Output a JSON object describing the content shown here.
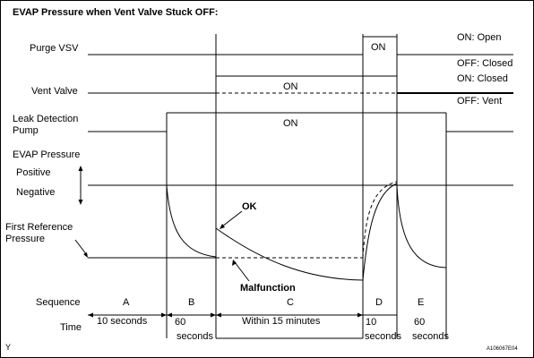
{
  "title": "EVAP Pressure when Vent Valve Stuck OFF:",
  "signals": {
    "purge_vsv": "Purge VSV",
    "vent_valve": "Vent Valve",
    "leak_pump_line1": "Leak Detection",
    "leak_pump_line2": "Pump",
    "evap_pressure": "EVAP Pressure",
    "positive": "Positive",
    "negative": "Negative",
    "first_ref_line1": "First Reference",
    "first_ref_line2": "Pressure"
  },
  "states": {
    "on_open": "ON: Open",
    "off_closed": "OFF: Closed",
    "on_closed": "ON: Closed",
    "off_vent": "OFF: Vent"
  },
  "on_labels": {
    "purge": "ON",
    "vent": "ON",
    "pump": "ON"
  },
  "curve_labels": {
    "ok": "OK",
    "malfunction": "Malfunction"
  },
  "sequence": {
    "label": "Sequence",
    "steps": [
      "A",
      "B",
      "C",
      "D",
      "E"
    ]
  },
  "time": {
    "label": "Time",
    "a": "10 seconds",
    "b_line1": "60",
    "b_line2": "seconds",
    "c": "Within 15 minutes",
    "d_line1": "10",
    "d_line2": "seconds",
    "e_line1": "60",
    "e_line2": "seconds"
  },
  "footer": {
    "left_mark": "Y",
    "figure_id": "A106067E04"
  }
}
